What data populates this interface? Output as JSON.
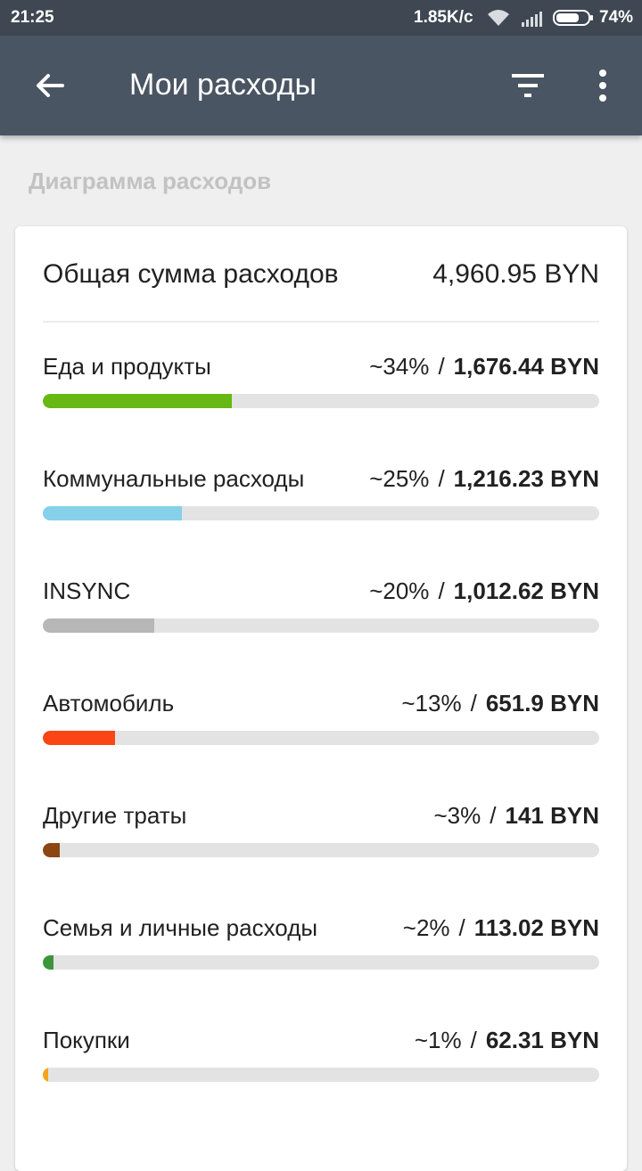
{
  "status_bar": {
    "time": "21:25",
    "speed": "1.85K/c",
    "battery_percent": "74%",
    "battery_level": 0.74
  },
  "app_bar": {
    "title": "Мои расходы",
    "back_icon": "arrow-left-icon",
    "filter_icon": "filter-icon",
    "more_icon": "more-vert-icon"
  },
  "section": {
    "title": "Диаграмма расходов"
  },
  "card": {
    "total_label": "Общая сумма расходов",
    "total_amount": "4,960.95 BYN",
    "categories": [
      {
        "name": "Еда и продукты",
        "percent": "~34%",
        "separator": "/",
        "amount": "1,676.44 BYN",
        "share": 0.34,
        "color": "#66b814"
      },
      {
        "name": "Коммунальные расходы",
        "percent": "~25%",
        "separator": "/",
        "amount": "1,216.23 BYN",
        "share": 0.25,
        "color": "#86d0ea"
      },
      {
        "name": "INSYNC",
        "percent": "~20%",
        "separator": "/",
        "amount": "1,012.62 BYN",
        "share": 0.2,
        "color": "#b7b7b7"
      },
      {
        "name": "Автомобиль",
        "percent": "~13%",
        "separator": "/",
        "amount": "651.9 BYN",
        "share": 0.13,
        "color": "#fa4614"
      },
      {
        "name": "Другие траты",
        "percent": "~3%",
        "separator": "/",
        "amount": "141 BYN",
        "share": 0.03,
        "color": "#8c4612"
      },
      {
        "name": "Семья и личные расходы",
        "percent": "~2%",
        "separator": "/",
        "amount": "113.02 BYN",
        "share": 0.02,
        "color": "#3b963b"
      },
      {
        "name": "Покупки",
        "percent": "~1%",
        "separator": "/",
        "amount": "62.31 BYN",
        "share": 0.01,
        "color": "#f5a31b"
      }
    ]
  }
}
